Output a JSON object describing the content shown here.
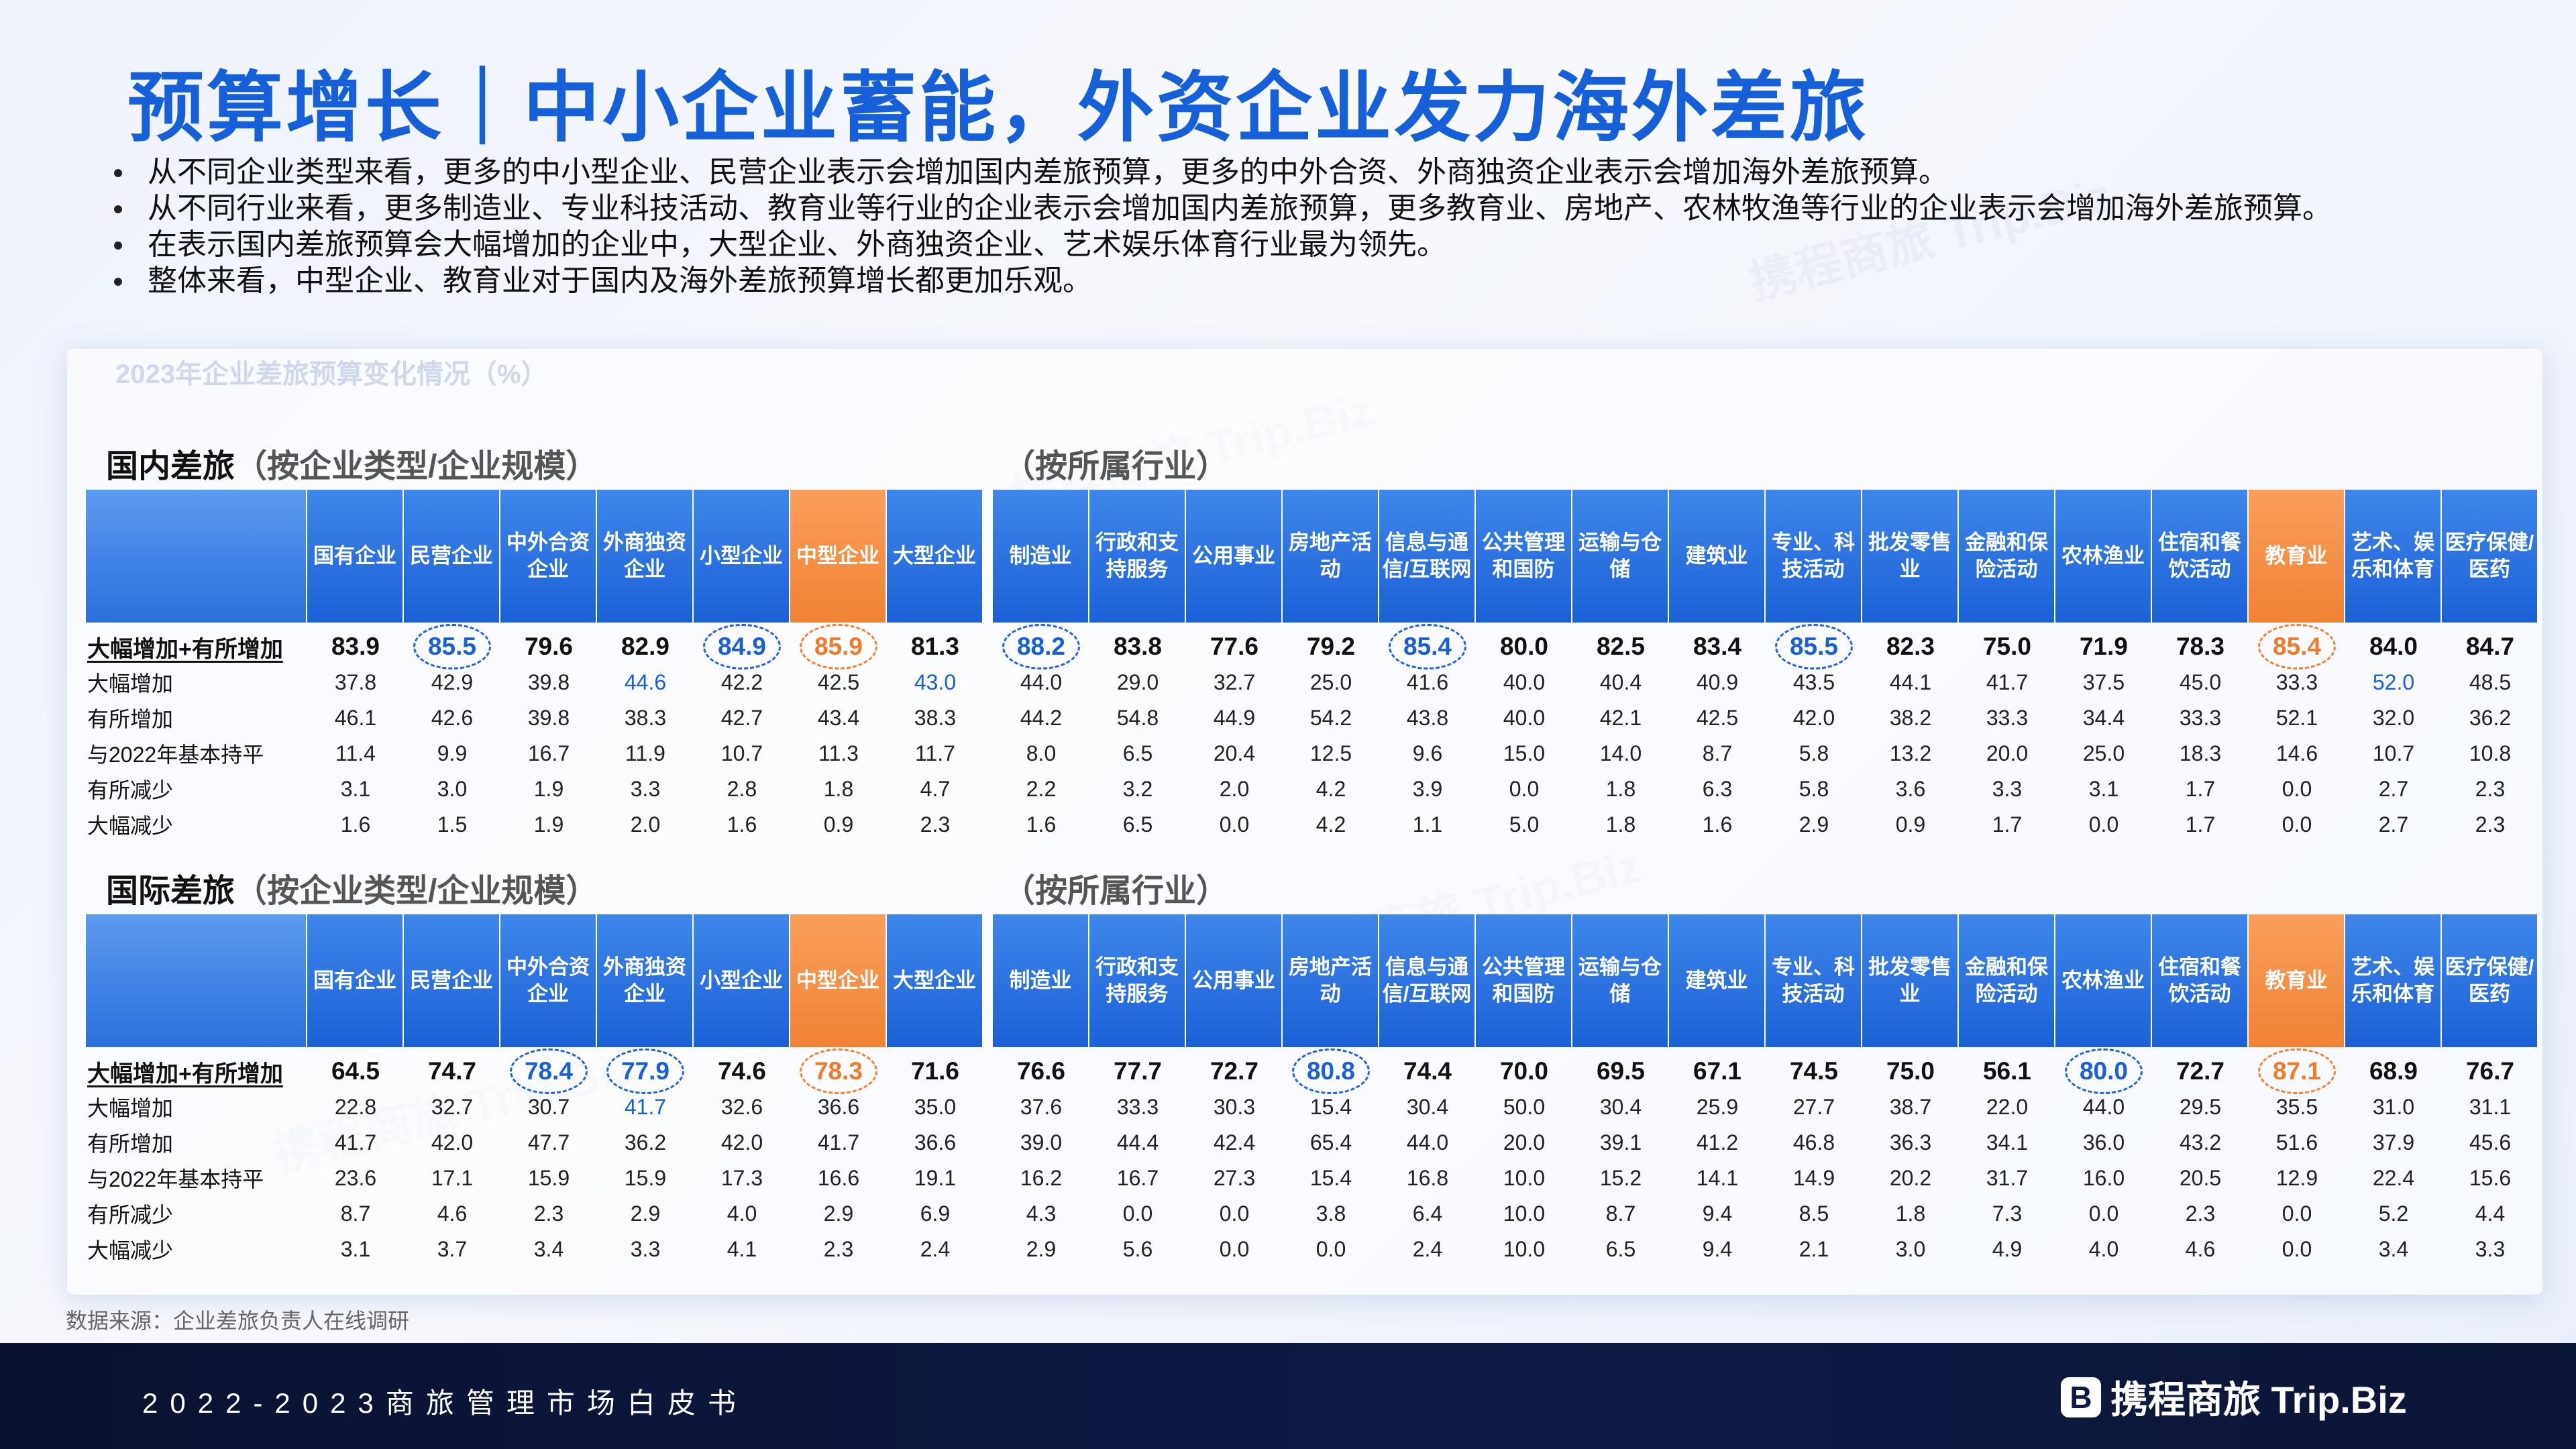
{
  "title": "预算增长｜中小企业蓄能，外资企业发力海外差旅",
  "bullets": [
    "从不同企业类型来看，更多的中小型企业、民营企业表示会增加国内差旅预算，更多的中外合资、外商独资企业表示会增加海外差旅预算。",
    "从不同行业来看，更多制造业、专业科技活动、教育业等行业的企业表示会增加国内差旅预算，更多教育业、房地产、农林牧渔等行业的企业表示会增加海外差旅预算。",
    "在表示国内差旅预算会大幅增加的企业中，大型企业、外商独资企业、艺术娱乐体育行业最为领先。",
    "整体来看，中型企业、教育业对于国内及海外差旅预算增长都更加乐观。"
  ],
  "chart_title": "2023年企业差旅预算变化情况（%）",
  "columns_left": [
    "国有企业",
    "民营企业",
    "中外合资企业",
    "外商独资企业",
    "小型企业",
    "中型企业",
    "大型企业"
  ],
  "columns_right": [
    "制造业",
    "行政和支持服务",
    "公用事业",
    "房地产活动",
    "信息与通信/互联网",
    "公共管理和国防",
    "运输与仓储",
    "建筑业",
    "专业、科技活动",
    "批发零售业",
    "金融和保险活动",
    "农林渔业",
    "住宿和餐饮活动",
    "教育业",
    "艺术、娱乐和体育",
    "医疗保健/医药"
  ],
  "row_labels": [
    "大幅增加+有所增加",
    "大幅增加",
    "有所增加",
    "与2022年基本持平",
    "有所减少",
    "大幅减少"
  ],
  "sections": [
    {
      "name": "国内差旅",
      "sub_left": "（按企业类型/企业规模）",
      "sub_right": "（按所属行业）",
      "rows": [
        [
          "83.9",
          "85.5",
          "79.6",
          "82.9",
          "84.9",
          "85.9",
          "81.3",
          "88.2",
          "83.8",
          "77.6",
          "79.2",
          "85.4",
          "80.0",
          "82.5",
          "83.4",
          "85.5",
          "82.3",
          "75.0",
          "71.9",
          "78.3",
          "85.4",
          "84.0",
          "84.7"
        ],
        [
          "37.8",
          "42.9",
          "39.8",
          "44.6",
          "42.2",
          "42.5",
          "43.0",
          "44.0",
          "29.0",
          "32.7",
          "25.0",
          "41.6",
          "40.0",
          "40.4",
          "40.9",
          "43.5",
          "44.1",
          "41.7",
          "37.5",
          "45.0",
          "33.3",
          "52.0",
          "48.5"
        ],
        [
          "46.1",
          "42.6",
          "39.8",
          "38.3",
          "42.7",
          "43.4",
          "38.3",
          "44.2",
          "54.8",
          "44.9",
          "54.2",
          "43.8",
          "40.0",
          "42.1",
          "42.5",
          "42.0",
          "38.2",
          "33.3",
          "34.4",
          "33.3",
          "52.1",
          "32.0",
          "36.2"
        ],
        [
          "11.4",
          "9.9",
          "16.7",
          "11.9",
          "10.7",
          "11.3",
          "11.7",
          "8.0",
          "6.5",
          "20.4",
          "12.5",
          "9.6",
          "15.0",
          "14.0",
          "8.7",
          "5.8",
          "13.2",
          "20.0",
          "25.0",
          "18.3",
          "14.6",
          "10.7",
          "10.8"
        ],
        [
          "3.1",
          "3.0",
          "1.9",
          "3.3",
          "2.8",
          "1.8",
          "4.7",
          "2.2",
          "3.2",
          "2.0",
          "4.2",
          "3.9",
          "0.0",
          "1.8",
          "6.3",
          "5.8",
          "3.6",
          "3.3",
          "3.1",
          "1.7",
          "0.0",
          "2.7",
          "2.3"
        ],
        [
          "1.6",
          "1.5",
          "1.9",
          "2.0",
          "1.6",
          "0.9",
          "2.3",
          "1.6",
          "6.5",
          "0.0",
          "4.2",
          "1.1",
          "5.0",
          "1.8",
          "1.6",
          "2.9",
          "0.9",
          "1.7",
          "0.0",
          "1.7",
          "0.0",
          "2.7",
          "2.3"
        ]
      ],
      "rings_blue": [
        1,
        4,
        7,
        11,
        15
      ],
      "rings_orange": [
        5,
        20
      ],
      "blue_cells": [
        [
          1,
          3
        ],
        [
          1,
          6
        ],
        [
          1,
          21
        ]
      ]
    },
    {
      "name": "国际差旅",
      "sub_left": "（按企业类型/企业规模）",
      "sub_right": "（按所属行业）",
      "rows": [
        [
          "64.5",
          "74.7",
          "78.4",
          "77.9",
          "74.6",
          "78.3",
          "71.6",
          "76.6",
          "77.7",
          "72.7",
          "80.8",
          "74.4",
          "70.0",
          "69.5",
          "67.1",
          "74.5",
          "75.0",
          "56.1",
          "80.0",
          "72.7",
          "87.1",
          "68.9",
          "76.7"
        ],
        [
          "22.8",
          "32.7",
          "30.7",
          "41.7",
          "32.6",
          "36.6",
          "35.0",
          "37.6",
          "33.3",
          "30.3",
          "15.4",
          "30.4",
          "50.0",
          "30.4",
          "25.9",
          "27.7",
          "38.7",
          "22.0",
          "44.0",
          "29.5",
          "35.5",
          "31.0",
          "31.1"
        ],
        [
          "41.7",
          "42.0",
          "47.7",
          "36.2",
          "42.0",
          "41.7",
          "36.6",
          "39.0",
          "44.4",
          "42.4",
          "65.4",
          "44.0",
          "20.0",
          "39.1",
          "41.2",
          "46.8",
          "36.3",
          "34.1",
          "36.0",
          "43.2",
          "51.6",
          "37.9",
          "45.6"
        ],
        [
          "23.6",
          "17.1",
          "15.9",
          "15.9",
          "17.3",
          "16.6",
          "19.1",
          "16.2",
          "16.7",
          "27.3",
          "15.4",
          "16.8",
          "10.0",
          "15.2",
          "14.1",
          "14.9",
          "20.2",
          "31.7",
          "16.0",
          "20.5",
          "12.9",
          "22.4",
          "15.6"
        ],
        [
          "8.7",
          "4.6",
          "2.3",
          "2.9",
          "4.0",
          "2.9",
          "6.9",
          "4.3",
          "0.0",
          "0.0",
          "3.8",
          "6.4",
          "10.0",
          "8.7",
          "9.4",
          "8.5",
          "1.8",
          "7.3",
          "0.0",
          "2.3",
          "0.0",
          "5.2",
          "4.4"
        ],
        [
          "3.1",
          "3.7",
          "3.4",
          "3.3",
          "4.1",
          "2.3",
          "2.4",
          "2.9",
          "5.6",
          "0.0",
          "0.0",
          "2.4",
          "10.0",
          "6.5",
          "9.4",
          "2.1",
          "3.0",
          "4.9",
          "4.0",
          "4.6",
          "0.0",
          "3.4",
          "3.3"
        ]
      ],
      "rings_blue": [
        2,
        3,
        10,
        18
      ],
      "rings_orange": [
        5,
        20
      ],
      "blue_cells": [
        [
          1,
          3
        ]
      ]
    }
  ],
  "source": "数据来源：企业差旅负责人在线调研",
  "footer": "2022-2023商旅管理市场白皮书",
  "logo_text": "携程商旅 Trip.Biz",
  "logo_mark": "B",
  "colors": {
    "accent_blue": "#1560d8",
    "accent_orange": "#f08234",
    "footer_bg": "#0b1535"
  }
}
